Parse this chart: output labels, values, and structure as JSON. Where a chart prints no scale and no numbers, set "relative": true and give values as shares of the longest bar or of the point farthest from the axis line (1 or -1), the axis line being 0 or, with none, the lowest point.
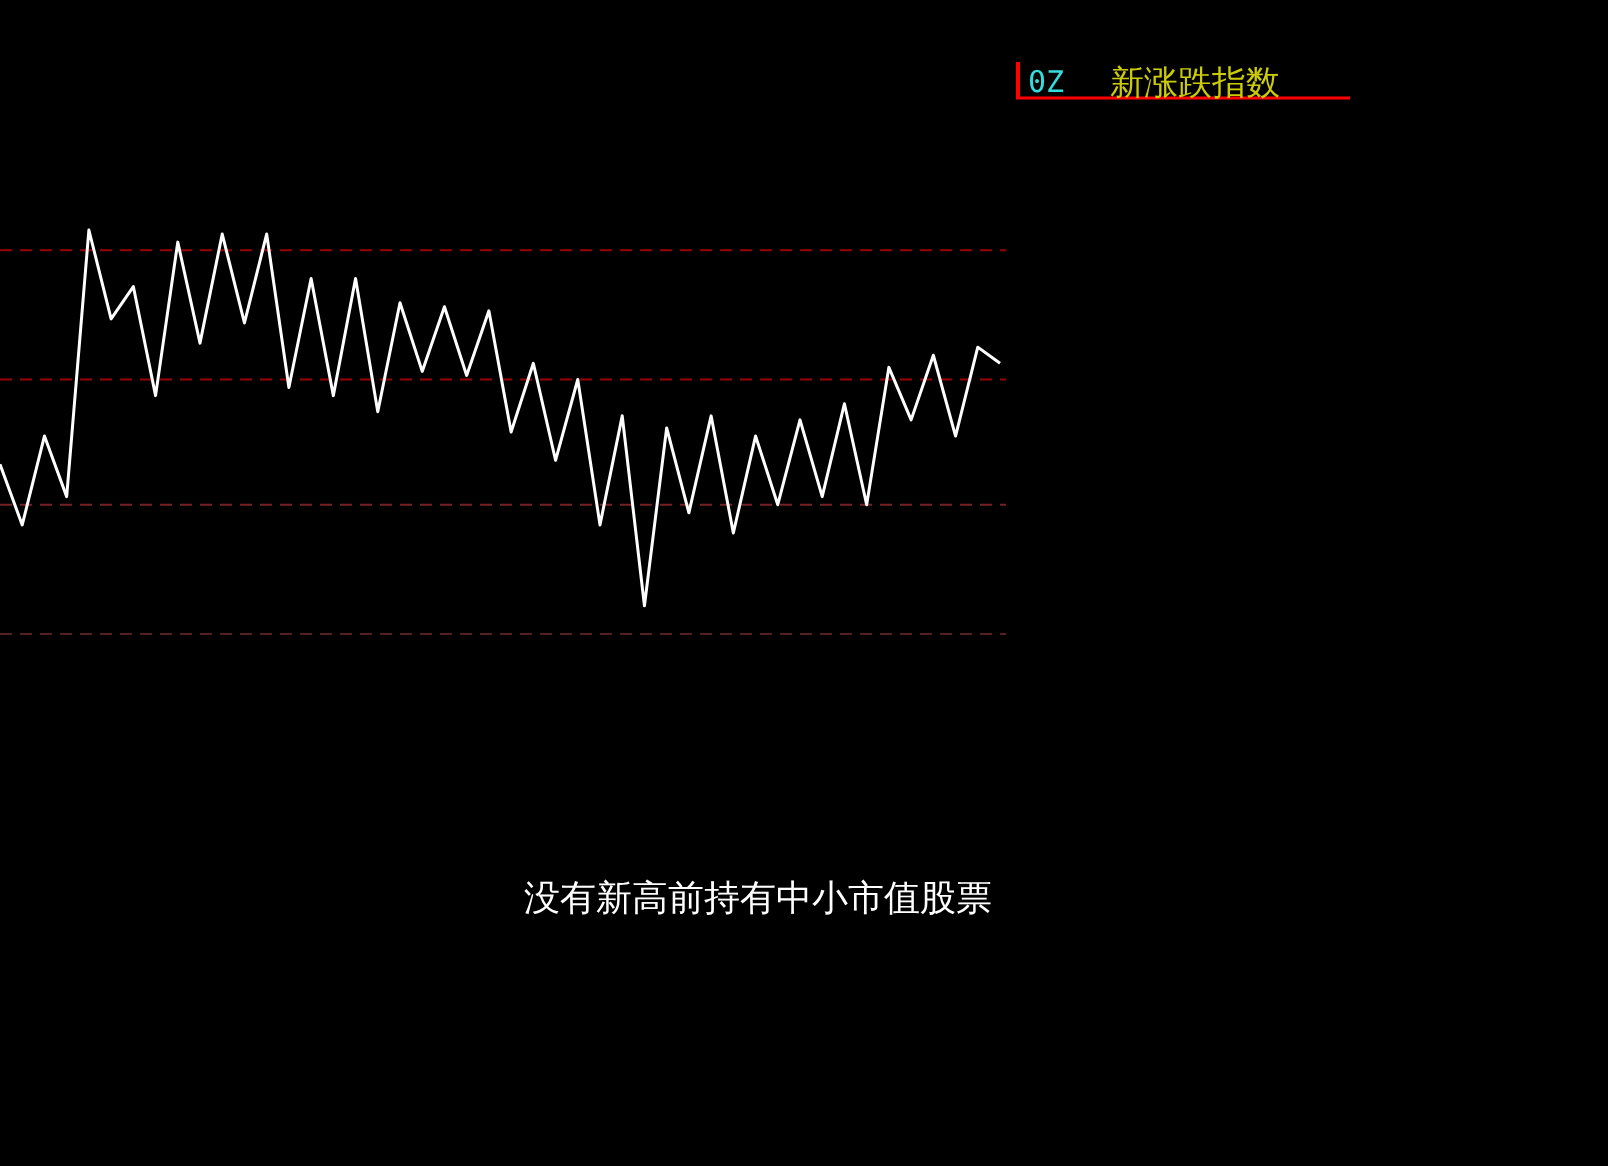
{
  "chart_data": {
    "type": "line",
    "title": "新涨跌指数",
    "relative": true,
    "annotations": [
      "0Z",
      "没有新高前持有中小市值股票"
    ],
    "categories": [
      null,
      null,
      null,
      null,
      null,
      null,
      null,
      null,
      null,
      null,
      null,
      null,
      null,
      null,
      null,
      null,
      null,
      null,
      null,
      null,
      null,
      null,
      null,
      null,
      null,
      null,
      null,
      null,
      null,
      null,
      null,
      null,
      null,
      null,
      null,
      null,
      null,
      null,
      null,
      null,
      null,
      null,
      null,
      null,
      null,
      null
    ],
    "ref_lines": [
      {
        "axis": "y",
        "value": 0.95,
        "color": "#990000",
        "line_style": "dashed"
      },
      {
        "axis": "y",
        "value": 0.63,
        "color": "#990000",
        "line_style": "dashed"
      },
      {
        "axis": "y",
        "value": 0.32,
        "color": "#772222",
        "line_style": "dashed"
      },
      {
        "axis": "y",
        "value": 0,
        "color": "#552222",
        "line_style": "dashed"
      }
    ],
    "series": [
      {
        "color": "#ffffff",
        "values": [
          0.42,
          0.27,
          0.49,
          0.34,
          1.0,
          0.78,
          0.86,
          0.59,
          0.97,
          0.72,
          0.99,
          0.77,
          0.99,
          0.61,
          0.88,
          0.59,
          0.88,
          0.55,
          0.82,
          0.65,
          0.81,
          0.64,
          0.8,
          0.5,
          0.67,
          0.43,
          0.63,
          0.27,
          0.54,
          0.07,
          0.51,
          0.3,
          0.54,
          0.25,
          0.49,
          0.32,
          0.53,
          0.34,
          0.57,
          0.32,
          0.66,
          0.53,
          0.69,
          0.49,
          0.71,
          0.67
        ]
      }
    ]
  }
}
